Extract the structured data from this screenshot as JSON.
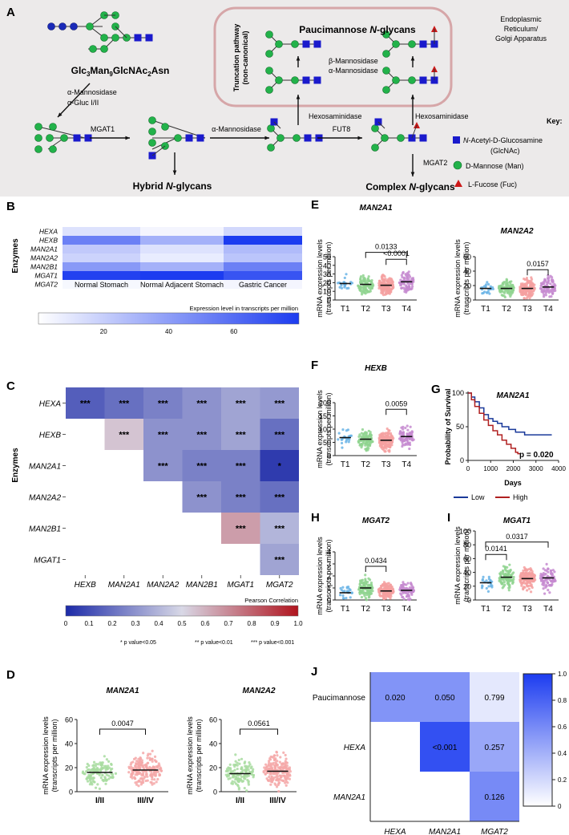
{
  "panel_a": {
    "letter": "A",
    "substrate": {
      "base": "Glc",
      "s1": "3",
      "b2": "Man",
      "s2": "9",
      "b3": "GlcNAc",
      "s3": "2",
      "b4": "Asn"
    },
    "enzyme_first_1": "α-Mannosidase",
    "enzyme_first_2": "α-Gluc I/II",
    "mgat1": "MGAT1",
    "alpha_mannosidase": "α-Mannosidase",
    "fut8": "FUT8",
    "mgat2": "MGAT2",
    "hexosaminidase": "Hexosaminidase",
    "beta_mannosidase": "β-Mannosidase",
    "alpha_mannosidase_2": "α-Mannosidase",
    "truncation_1": "Truncation pathway",
    "truncation_2": "(non-canonical)",
    "pauci_bold": "Paucimannose ",
    "pauci_italic": "N",
    "pauci_tail": "-glycans",
    "hybrid_bold": "Hybrid ",
    "hybrid_italic": "N",
    "hybrid_tail": "-glycans",
    "complex_bold": "Complex ",
    "complex_italic": "N",
    "complex_tail": "-glycans",
    "location": [
      "Endoplasmic",
      "Reticulum/",
      "Golgi Apparatus"
    ],
    "key_title": "Key:",
    "key_glcnac_italic": "N",
    "key_glcnac_tail": "-Acetyl-D-Glucosamine",
    "key_glcnac_abbr": "(GlcNAc)",
    "key_man": "D-Mannose (Man)",
    "key_fuc": "L-Fucose (Fuc)"
  },
  "panel_b": {
    "letter": "B",
    "ylabel": "Enzymes",
    "rows": [
      "HEXA",
      "HEXB",
      "MAN2A1",
      "MAN2A2",
      "MAN2B1",
      "MGAT1",
      "MGAT2"
    ],
    "columns": [
      "Normal Stomach",
      "Normal Adjacent Stomach",
      "Gastric Cancer"
    ],
    "values": [
      [
        12,
        4,
        16
      ],
      [
        52,
        32,
        80
      ],
      [
        22,
        12,
        28
      ],
      [
        18,
        8,
        24
      ],
      [
        42,
        32,
        52
      ],
      [
        78,
        82,
        70
      ],
      [
        3,
        2,
        4
      ]
    ],
    "colorbar_title": "Expression level in transcripts per million",
    "colorbar_ticks": [
      "20",
      "40",
      "60"
    ],
    "colorbar_max": 80
  },
  "panel_c": {
    "letter": "C",
    "ylabel": "Enzymes",
    "rows": [
      "HEXA",
      "HEXB",
      "MAN2A1",
      "MAN2A2",
      "MAN2B1",
      "MGAT1"
    ],
    "columns": [
      "HEXB",
      "MAN2A1",
      "MAN2A2",
      "MAN2B1",
      "MGAT1",
      "MGAT2"
    ],
    "r_values": [
      [
        0.15,
        0.2,
        0.25,
        0.3,
        0.35,
        0.32
      ],
      [
        null,
        0.55,
        0.3,
        0.3,
        0.35,
        0.2
      ],
      [
        null,
        null,
        0.3,
        0.25,
        0.25,
        0.05
      ],
      [
        null,
        null,
        null,
        0.3,
        0.25,
        0.2
      ],
      [
        null,
        null,
        null,
        null,
        0.65,
        0.4
      ],
      [
        null,
        null,
        null,
        null,
        null,
        0.35
      ]
    ],
    "stars": [
      [
        "***",
        "***",
        "***",
        "***",
        "***",
        "***"
      ],
      [
        null,
        "***",
        "***",
        "***",
        "***",
        "***"
      ],
      [
        null,
        null,
        "***",
        "***",
        "***",
        "*"
      ],
      [
        null,
        null,
        null,
        "***",
        "***",
        "***"
      ],
      [
        null,
        null,
        null,
        null,
        "***",
        "***"
      ],
      [
        null,
        null,
        null,
        null,
        null,
        "***"
      ]
    ],
    "colorbar_title": "Pearson Correlation",
    "colorbar_ticks": [
      "0",
      "0.1",
      "0.2",
      "0.3",
      "0.4",
      "0.5",
      "0.6",
      "0.7",
      "0.8",
      "0.9",
      "1.0"
    ],
    "footnote": [
      "* p value<0.05",
      "** p value<0.01",
      "*** p value<0.001"
    ]
  },
  "panel_j": {
    "letter": "J",
    "rows": [
      "Paucimannose",
      "HEXA",
      "MAN2A1"
    ],
    "columns": [
      "HEXA",
      "MAN2A1",
      "MGAT2"
    ],
    "values": [
      [
        "0.020",
        "0.050",
        "0.799"
      ],
      [
        null,
        "<0.001",
        "0.257"
      ],
      [
        null,
        null,
        "0.126"
      ]
    ],
    "shade": [
      [
        0.55,
        0.55,
        0.12
      ],
      [
        null,
        0.9,
        0.45
      ],
      [
        null,
        null,
        0.6
      ]
    ],
    "colorbar_ticks": [
      "0",
      "0.2",
      "0.4",
      "0.6",
      "0.8",
      "1.0"
    ]
  },
  "panel_g": {
    "letter": "G",
    "title": "MAN2A1",
    "ylabel": "Probability of Survival",
    "xlabel": "Days",
    "xticks": [
      "0",
      "1000",
      "2000",
      "3000",
      "4000"
    ],
    "yticks": [
      "0",
      "50",
      "100"
    ],
    "pvalue": "p = 0.020",
    "legend_low": "Low",
    "legend_high": "High",
    "colors": {
      "low": "#1a3a9a",
      "high": "#b02020"
    }
  },
  "chart_data": [
    {
      "type": "scatter",
      "panel": "E",
      "title": "MAN2A1",
      "ylabel": "mRNA expression levels",
      "ylabel2": "(transcripts per million)",
      "categories": [
        "T1",
        "T2",
        "T3",
        "T4"
      ],
      "ylim": [
        0,
        50
      ],
      "yticks": [
        "0",
        "10",
        "20",
        "30",
        "40",
        "50"
      ],
      "medians": [
        19,
        18,
        17,
        21
      ],
      "n": [
        22,
        100,
        150,
        80
      ],
      "spread": [
        6,
        7,
        7,
        8
      ],
      "brackets": [
        {
          "a": 2,
          "b": 3,
          "y": 47,
          "label": "<0.0001"
        },
        {
          "a": 1,
          "b": 3,
          "y": 55,
          "label": "0.0133"
        }
      ]
    },
    {
      "type": "scatter",
      "panel": "E",
      "title": "MAN2A2",
      "ylabel": "mRNA expression levels",
      "ylabel2": "(transcripts per million)",
      "categories": [
        "T1",
        "T2",
        "T3",
        "T4"
      ],
      "ylim": [
        0,
        60
      ],
      "yticks": [
        "0",
        "20",
        "40",
        "60"
      ],
      "medians": [
        16,
        16,
        16,
        18
      ],
      "n": [
        22,
        100,
        150,
        80
      ],
      "spread": [
        6,
        8,
        9,
        9
      ],
      "brackets": [
        {
          "a": 2,
          "b": 3,
          "y": 42,
          "label": "0.0157"
        }
      ]
    },
    {
      "type": "scatter",
      "panel": "F",
      "title": "HEXB",
      "ylabel": "mRNA expression levels",
      "ylabel2": "(transcripts per million)",
      "categories": [
        "T1",
        "T2",
        "T3",
        "T4"
      ],
      "ylim": [
        0,
        200
      ],
      "yticks": [
        "0",
        "50",
        "100",
        "150",
        "200"
      ],
      "medians": [
        68,
        62,
        58,
        72
      ],
      "n": [
        22,
        100,
        150,
        80
      ],
      "spread": [
        22,
        24,
        26,
        28
      ],
      "brackets": [
        {
          "a": 2,
          "b": 3,
          "y": 175,
          "label": "0.0059"
        }
      ]
    },
    {
      "type": "scatter",
      "panel": "H",
      "title": "MGAT2",
      "ylabel": "mRNA expression levels",
      "ylabel2": "(transcripts per million)",
      "categories": [
        "T1",
        "T2",
        "T3",
        "T4"
      ],
      "ylim": [
        0,
        4
      ],
      "yticks": [
        "0",
        "1",
        "2",
        "3",
        "4"
      ],
      "medians": [
        0.6,
        1.0,
        0.75,
        0.8
      ],
      "n": [
        22,
        100,
        150,
        80
      ],
      "spread": [
        0.35,
        0.55,
        0.45,
        0.45
      ],
      "brackets": [
        {
          "a": 1,
          "b": 2,
          "y": 2.8,
          "label": "0.0434"
        }
      ]
    },
    {
      "type": "scatter",
      "panel": "I",
      "title": "MGAT1",
      "ylabel": "mRNA expression levels",
      "ylabel2": "(transcripts per million)",
      "categories": [
        "T1",
        "T2",
        "T3",
        "T4"
      ],
      "ylim": [
        0,
        100
      ],
      "yticks": [
        "0",
        "20",
        "40",
        "60",
        "80",
        "100"
      ],
      "medians": [
        25,
        33,
        31,
        32
      ],
      "n": [
        22,
        100,
        150,
        80
      ],
      "spread": [
        8,
        11,
        11,
        12
      ],
      "brackets": [
        {
          "a": 0,
          "b": 1,
          "y": 66,
          "label": "0.0141"
        },
        {
          "a": 0,
          "b": 3,
          "y": 84,
          "label": "0.0317"
        }
      ]
    },
    {
      "type": "scatter",
      "panel": "D",
      "title": "MAN2A1",
      "ylabel": "mRNA expression levels",
      "ylabel2": "(transcripts per million)",
      "categories": [
        "I/II",
        "III/IV"
      ],
      "ylim": [
        0,
        60
      ],
      "yticks": [
        "0",
        "20",
        "40",
        "60"
      ],
      "medians": [
        16,
        18
      ],
      "n": [
        130,
        200
      ],
      "spread": [
        7,
        8
      ],
      "brackets": [
        {
          "a": 0,
          "b": 1,
          "y": 52,
          "label": "0.0047"
        }
      ]
    },
    {
      "type": "scatter",
      "panel": "D",
      "title": "MAN2A2",
      "ylabel": "mRNA expression levels",
      "ylabel2": "(transcripts per million)",
      "categories": [
        "I/II",
        "III/IV"
      ],
      "ylim": [
        0,
        60
      ],
      "yticks": [
        "0",
        "20",
        "40",
        "60"
      ],
      "medians": [
        15,
        17
      ],
      "n": [
        130,
        200
      ],
      "spread": [
        8,
        9
      ],
      "brackets": [
        {
          "a": 0,
          "b": 1,
          "y": 52,
          "label": "0.0561"
        }
      ]
    },
    {
      "type": "line",
      "panel": "G",
      "title": "MAN2A1",
      "xlabel": "Days",
      "ylabel": "Probability of Survival",
      "xlim": [
        0,
        4000
      ],
      "ylim": [
        0,
        100
      ],
      "series": [
        {
          "name": "Low",
          "x": [
            0,
            150,
            300,
            500,
            700,
            900,
            1100,
            1300,
            1500,
            1800,
            2100,
            2500,
            3000,
            3700
          ],
          "y": [
            100,
            94,
            87,
            78,
            68,
            62,
            58,
            55,
            50,
            46,
            42,
            38,
            38,
            38
          ]
        },
        {
          "name": "High",
          "x": [
            0,
            150,
            300,
            500,
            700,
            900,
            1100,
            1300,
            1500,
            1700,
            1900,
            2100,
            2200,
            2300
          ],
          "y": [
            100,
            90,
            80,
            70,
            60,
            52,
            44,
            38,
            30,
            24,
            18,
            12,
            10,
            10
          ]
        }
      ]
    }
  ]
}
